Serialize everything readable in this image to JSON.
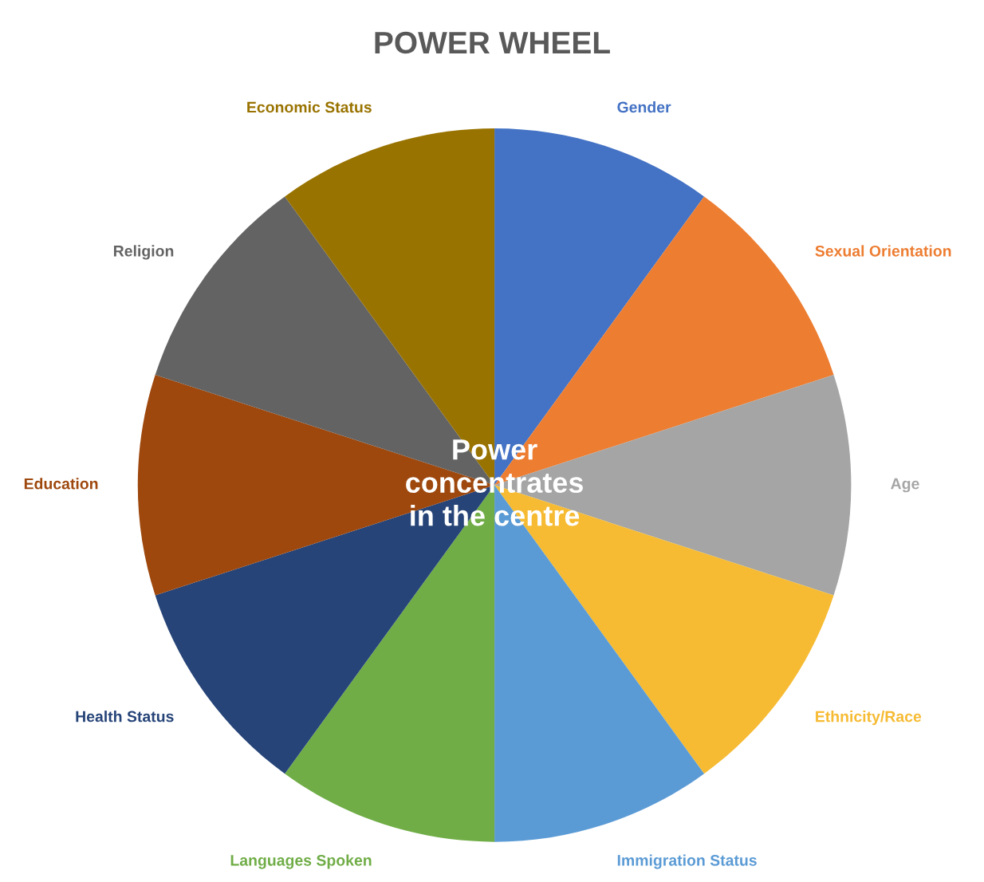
{
  "chart_data": {
    "type": "pie",
    "title": "POWER WHEEL",
    "categories": [
      "Gender",
      "Sexual Orientation",
      "Age",
      "Ethnicity/Race",
      "Immigration Status",
      "Languages Spoken",
      "Health Status",
      "Education",
      "Religion",
      "Economic Status"
    ],
    "values": [
      10,
      10,
      10,
      10,
      10,
      10,
      10,
      10,
      10,
      10
    ],
    "colors": [
      "#4472c4",
      "#ed7d31",
      "#a5a5a5",
      "#f6bb33",
      "#5b9bd5",
      "#70ad47",
      "#264478",
      "#9e480e",
      "#636363",
      "#997300"
    ],
    "annotations": [
      "Power\nconcentrates\nin the centre"
    ]
  }
}
